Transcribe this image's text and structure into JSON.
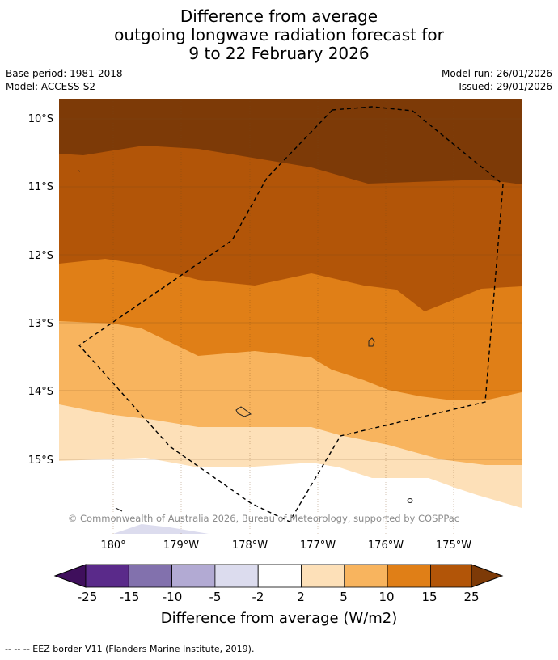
{
  "title_lines": [
    "Difference from average",
    "outgoing longwave radiation forecast for",
    "9 to 22 February 2026"
  ],
  "meta": {
    "base_period": "Base period: 1981-2018",
    "model": "Model: ACCESS-S2",
    "model_run": "Model run: 26/01/2026",
    "issued": "Issued: 29/01/2026"
  },
  "map": {
    "lat_labels": [
      "10°S",
      "11°S",
      "12°S",
      "13°S",
      "14°S",
      "15°S"
    ],
    "lon_labels": [
      "180°",
      "179°W",
      "178°W",
      "177°W",
      "176°W",
      "175°W"
    ],
    "copyright": "© Commonwealth of Australia 2026, Bureau of Meteorology, supported by COSPPac"
  },
  "colorbar": {
    "ticks": [
      "-25",
      "-15",
      "-10",
      "-5",
      "-2",
      "2",
      "5",
      "10",
      "15",
      "25"
    ],
    "colors": [
      "#3f0f5c",
      "#5a2a8a",
      "#8271ad",
      "#b2aad3",
      "#dcdcee",
      "#ffffff",
      "#fde0b8",
      "#f8b45e",
      "#e07f17",
      "#b25508",
      "#7d3a07"
    ],
    "label": "Difference from average (W/m2)"
  },
  "footer": "--  --  -- EEZ border V11 (Flanders Marine Institute, 2019).",
  "palette": {
    "darkest_brown": "#7d3a07",
    "dark_orange": "#b25508",
    "orange": "#e07f17",
    "light_orange": "#f8b45e",
    "pale_peach": "#fde0b8",
    "light_lilac": "#dcdcee"
  }
}
